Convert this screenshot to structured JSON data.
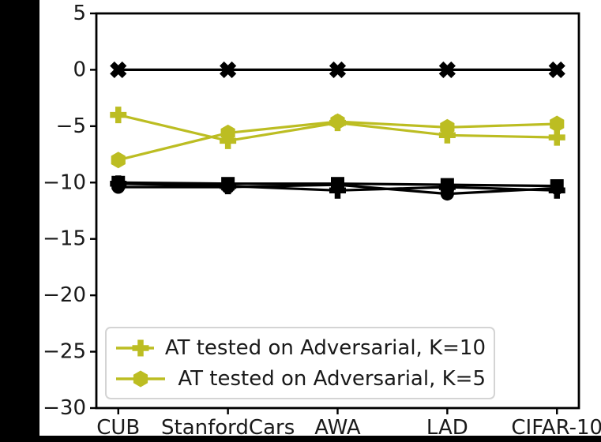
{
  "figure": {
    "background_color": "#ffffff",
    "letterbox_color": "#000000",
    "axis_color": "#000000",
    "text_color": "#1a1a1a"
  },
  "chart_data": {
    "type": "line",
    "title": "",
    "xlabel": "",
    "ylabel": "",
    "grid": false,
    "legend_position": "lower-left",
    "categories": [
      "CUB",
      "StanfordCars",
      "AWA",
      "LAD",
      "CIFAR-10"
    ],
    "ylim": [
      -30,
      5
    ],
    "yticks": [
      {
        "v": 5,
        "label": "5"
      },
      {
        "v": 0,
        "label": "0"
      },
      {
        "v": -5,
        "label": "−5"
      },
      {
        "v": -10,
        "label": "−10"
      },
      {
        "v": -15,
        "label": "−15"
      },
      {
        "v": -20,
        "label": "−20"
      },
      {
        "v": -25,
        "label": "−25"
      },
      {
        "v": -30,
        "label": "−30"
      }
    ],
    "series": [
      {
        "name": "AT tested on Adversarial, K=10",
        "marker": "plus",
        "color": "#bcbd22",
        "in_legend": true,
        "values": [
          -4.0,
          -6.3,
          -4.7,
          -5.8,
          -6.0
        ]
      },
      {
        "name": "AT tested on Adversarial, K=5",
        "marker": "hexagon",
        "color": "#bcbd22",
        "in_legend": true,
        "values": [
          -8.0,
          -5.6,
          -4.6,
          -5.1,
          -4.8
        ]
      },
      {
        "name": "",
        "marker": "x-filled",
        "color": "#000000",
        "in_legend": false,
        "values": [
          0,
          0,
          0,
          0,
          0
        ]
      },
      {
        "name": "",
        "marker": "square",
        "color": "#000000",
        "in_legend": false,
        "values": [
          -10.0,
          -10.1,
          -10.1,
          -10.2,
          -10.3
        ]
      },
      {
        "name": "",
        "marker": "circle",
        "color": "#000000",
        "in_legend": false,
        "values": [
          -10.4,
          -10.4,
          -10.2,
          -11.0,
          -10.5
        ]
      },
      {
        "name": "",
        "marker": "plus",
        "color": "#000000",
        "in_legend": false,
        "values": [
          -10.1,
          -10.3,
          -10.7,
          -10.4,
          -10.7
        ]
      }
    ]
  }
}
